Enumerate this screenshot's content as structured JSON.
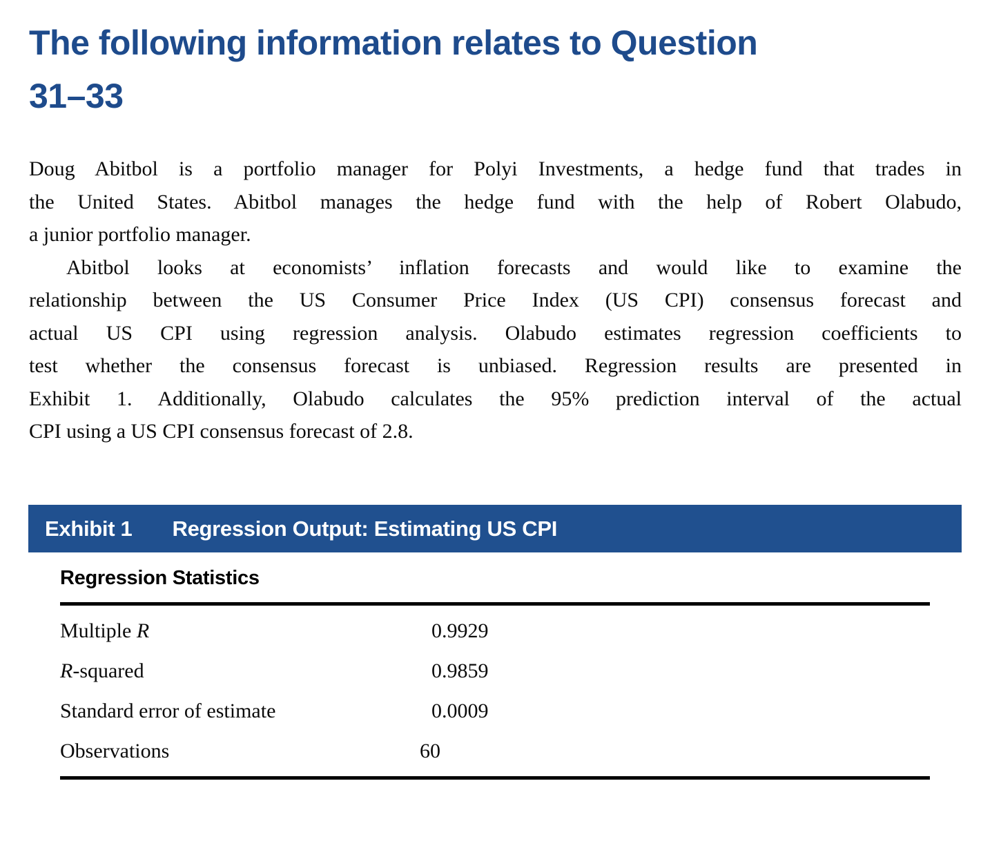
{
  "heading": {
    "line1": "The following information relates to Question",
    "line2": "31–33"
  },
  "body": {
    "paragraphs": [
      {
        "indent": false,
        "lines": [
          "Doug Abitbol is a portfolio manager for Polyi Investments, a hedge fund that trades in",
          "the United States. Abitbol manages the hedge fund with the help of Robert Olabudo,",
          "a junior portfolio manager."
        ]
      },
      {
        "indent": true,
        "lines": [
          "Abitbol looks at economists’ inflation forecasts and would like to examine the",
          "relationship between the US Consumer Price Index (US CPI) consensus forecast and",
          "actual US CPI using regression analysis. Olabudo estimates regression coefficients to",
          "test whether the consensus forecast is unbiased. Regression results are presented in",
          "Exhibit 1. Additionally, Olabudo calculates the 95% prediction interval of the actual",
          "CPI using a US CPI consensus forecast of 2.8."
        ]
      }
    ]
  },
  "exhibit": {
    "label": "Exhibit 1",
    "title": "Regression Output: Estimating US CPI"
  },
  "table": {
    "section_header": "Regression Statistics",
    "rows": [
      {
        "label_pre": "Multiple ",
        "label_italic": "R",
        "label_post": "",
        "value": "0.9929"
      },
      {
        "label_pre": "",
        "label_italic": "R",
        "label_post": "-squared",
        "value": "0.9859"
      },
      {
        "label_pre": "Standard error of estimate",
        "label_italic": "",
        "label_post": "",
        "value": "0.0009"
      },
      {
        "label_pre": "Observations",
        "label_italic": "",
        "label_post": "",
        "value": "60"
      }
    ]
  },
  "colors": {
    "heading_navy": "#1e4b8c",
    "exhibit_bar_navy": "#20508f",
    "rule_black": "#000000"
  }
}
